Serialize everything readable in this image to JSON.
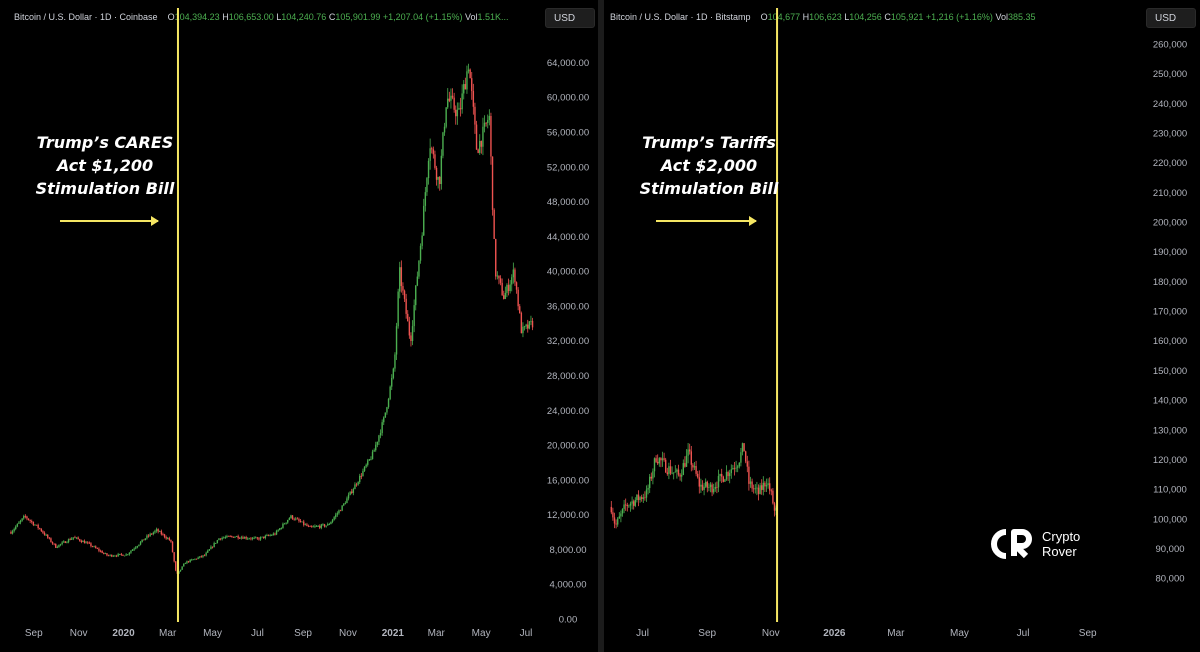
{
  "left_chart": {
    "header": {
      "symbol": "Bitcoin / U.S. Dollar · 1D · Coinbase",
      "open_label": "O",
      "open": "104,394.23",
      "high_label": "H",
      "high": "106,653.00",
      "low_label": "L",
      "low": "104,240.76",
      "close_label": "C",
      "close": "105,901.99",
      "change": "+1,207.04 (+1.15%)",
      "vol_label": "Vol",
      "vol": "1.51K..."
    },
    "currency_button": "USD",
    "annotation": [
      "Trump’s CARES",
      "Act $1,200",
      "Stimulation Bill"
    ]
  },
  "right_chart": {
    "header": {
      "symbol": "Bitcoin / U.S. Dollar · 1D · Bitstamp",
      "open_label": "O",
      "open": "104,677",
      "high_label": "H",
      "high": "106,623",
      "low_label": "L",
      "low": "104,256",
      "close_label": "C",
      "close": "105,921",
      "change": "+1,216 (+1.16%)",
      "vol_label": "Vol",
      "vol": "385.35"
    },
    "currency_button": "USD",
    "annotation": [
      "Trump’s Tariffs",
      "Act $2,000",
      "Stimulation Bill"
    ]
  },
  "brand": {
    "line1": "Crypto",
    "line2": "Rover"
  },
  "colors": {
    "up": "#4caf50",
    "down": "#ef5350",
    "marker": "#f5e663",
    "background": "#000000"
  },
  "chart_data": [
    {
      "type": "line",
      "title": "Bitcoin / U.S. Dollar · 1D · Coinbase",
      "ylabel": "USD",
      "ylim": [
        0,
        66000
      ],
      "y_ticks": [
        "0.00",
        "4,000.00",
        "8,000.00",
        "12,000.00",
        "16,000.00",
        "20,000.00",
        "24,000.00",
        "28,000.00",
        "32,000.00",
        "36,000.00",
        "40,000.00",
        "44,000.00",
        "48,000.00",
        "52,000.00",
        "56,000.00",
        "60,000.00",
        "64,000.00"
      ],
      "x_ticks": [
        "Sep",
        "Nov",
        "2020",
        "Mar",
        "May",
        "Jul",
        "Sep",
        "Nov",
        "2021",
        "Mar",
        "May",
        "Jul"
      ],
      "marker_line": "2020-03-15",
      "x": [
        "2019-08-01",
        "2019-08-20",
        "2019-09-10",
        "2019-10-01",
        "2019-10-25",
        "2019-11-15",
        "2019-12-10",
        "2020-01-05",
        "2020-02-01",
        "2020-02-15",
        "2020-03-05",
        "2020-03-13",
        "2020-03-25",
        "2020-04-20",
        "2020-05-10",
        "2020-06-01",
        "2020-07-01",
        "2020-07-25",
        "2020-08-15",
        "2020-09-10",
        "2020-10-05",
        "2020-10-25",
        "2020-11-15",
        "2020-12-05",
        "2020-12-20",
        "2021-01-03",
        "2021-01-10",
        "2021-01-25",
        "2021-02-10",
        "2021-02-20",
        "2021-03-05",
        "2021-03-15",
        "2021-04-01",
        "2021-04-14",
        "2021-04-25",
        "2021-05-05",
        "2021-05-12",
        "2021-05-20",
        "2021-06-01",
        "2021-06-15",
        "2021-06-25",
        "2021-07-10"
      ],
      "series": [
        {
          "values": [
            10000,
            11800,
            10300,
            8300,
            9400,
            8600,
            7300,
            7400,
            9400,
            10200,
            9000,
            5000,
            6500,
            7300,
            9300,
            9500,
            9200,
            9800,
            11800,
            10500,
            10800,
            13000,
            16000,
            19000,
            23000,
            29000,
            40000,
            32000,
            45000,
            55000,
            50000,
            60000,
            58000,
            64000,
            54000,
            56000,
            58000,
            40000,
            37000,
            40000,
            33000,
            34000
          ]
        }
      ]
    },
    {
      "type": "line",
      "title": "Bitcoin / U.S. Dollar · 1D · Bitstamp",
      "ylabel": "USD",
      "ylim": [
        75000,
        262000
      ],
      "y_ticks": [
        "80,000",
        "90,000",
        "100,000",
        "110,000",
        "120,000",
        "130,000",
        "140,000",
        "150,000",
        "160,000",
        "170,000",
        "180,000",
        "190,000",
        "200,000",
        "210,000",
        "220,000",
        "230,000",
        "240,000",
        "250,000",
        "260,000"
      ],
      "x_ticks": [
        "Jul",
        "Sep",
        "Nov",
        "2026",
        "Mar",
        "May",
        "Jul",
        "Sep"
      ],
      "marker_line": "2025-11-07",
      "x": [
        "2025-06-01",
        "2025-06-05",
        "2025-06-15",
        "2025-06-25",
        "2025-07-05",
        "2025-07-14",
        "2025-07-25",
        "2025-08-05",
        "2025-08-14",
        "2025-08-25",
        "2025-09-05",
        "2025-09-20",
        "2025-10-01",
        "2025-10-06",
        "2025-10-11",
        "2025-10-20",
        "2025-10-28",
        "2025-11-02",
        "2025-11-05",
        "2025-11-07"
      ],
      "series": [
        {
          "values": [
            104000,
            97500,
            104500,
            106500,
            108500,
            121000,
            117000,
            114500,
            122000,
            111000,
            110500,
            115500,
            119500,
            124500,
            112000,
            108500,
            113000,
            107500,
            101500,
            103500
          ]
        }
      ]
    }
  ]
}
